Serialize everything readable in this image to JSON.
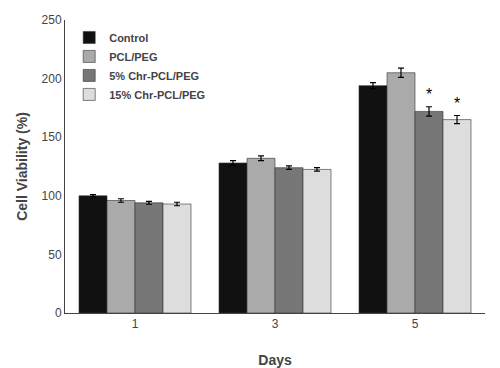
{
  "chart_data": {
    "type": "bar",
    "categories": [
      "1",
      "3",
      "5"
    ],
    "series": [
      {
        "name": "Control",
        "color": "#111111",
        "values": [
          100.0,
          128.0,
          194.0
        ],
        "errors": [
          1.0,
          2.0,
          2.5
        ]
      },
      {
        "name": "PCL/PEG",
        "color": "#aaaaaa",
        "values": [
          96.0,
          132.0,
          205.0
        ],
        "errors": [
          1.5,
          2.0,
          4.0
        ]
      },
      {
        "name": "5% Chr-PCL/PEG",
        "color": "#777777",
        "values": [
          94.0,
          124.0,
          172.0
        ],
        "errors": [
          1.2,
          1.5,
          4.0
        ]
      },
      {
        "name": "15% Chr-PCL/PEG",
        "color": "#dddddd",
        "values": [
          93.0,
          122.5,
          165.0
        ],
        "errors": [
          1.5,
          1.5,
          3.5
        ]
      }
    ],
    "annotations": [
      {
        "category": "5",
        "series": "5% Chr-PCL/PEG",
        "text": "*"
      },
      {
        "category": "5",
        "series": "15% Chr-PCL/PEG",
        "text": "*"
      }
    ],
    "xlabel": "Days",
    "ylabel": "Cell Viability (%)",
    "ylim": [
      0,
      250
    ],
    "yticks": [
      0,
      50,
      100,
      150,
      200,
      250
    ],
    "grid": false,
    "legend": "upper left"
  }
}
